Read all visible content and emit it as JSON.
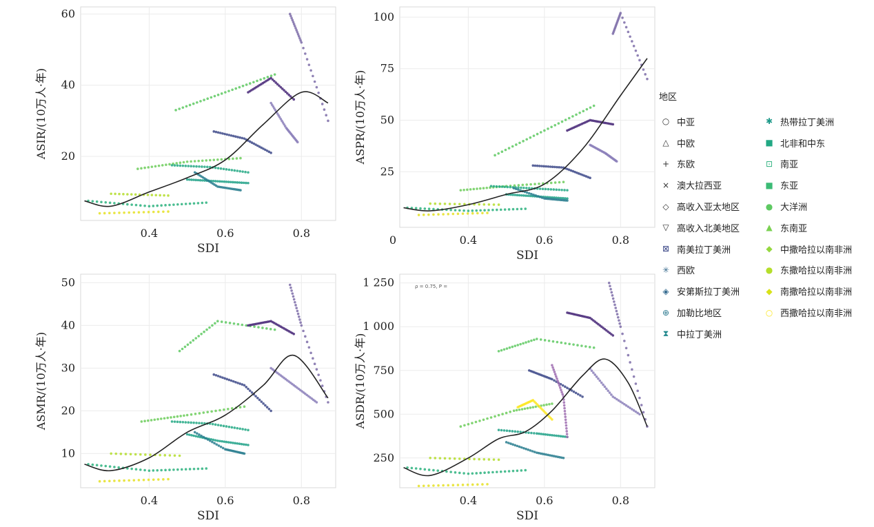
{
  "chart_data": [
    {
      "type": "scatter",
      "ylabel": "ASIR/(10万人·年)",
      "xlabel": "SDI",
      "xlim": [
        0.22,
        0.89
      ],
      "ylim": [
        2,
        62
      ],
      "xticks": [
        "0.4",
        "0.6",
        "0.8"
      ],
      "yticks": [
        "20",
        "40",
        "60"
      ],
      "annotation": "",
      "fit": {
        "x": [
          0.23,
          0.3,
          0.4,
          0.5,
          0.6,
          0.7,
          0.8,
          0.87
        ],
        "y": [
          7.5,
          6,
          10,
          14,
          19,
          29,
          38,
          35
        ]
      },
      "series": [
        {
          "color": "#e5e023",
          "x": [
            0.27,
            0.45
          ],
          "y": [
            4,
            4.5
          ]
        },
        {
          "color": "#b4dd2c",
          "x": [
            0.3,
            0.45
          ],
          "y": [
            9.5,
            9
          ]
        },
        {
          "color": "#6ccd5a",
          "x": [
            0.37,
            0.5,
            0.64
          ],
          "y": [
            16.5,
            18.5,
            19.5
          ]
        },
        {
          "color": "#5ec962",
          "x": [
            0.47,
            0.6,
            0.73
          ],
          "y": [
            33,
            38,
            43
          ]
        },
        {
          "color": "#2cb17e",
          "x": [
            0.24,
            0.4,
            0.55
          ],
          "y": [
            7.5,
            6,
            7
          ]
        },
        {
          "color": "#1fa187",
          "x": [
            0.5,
            0.58,
            0.66
          ],
          "y": [
            13.5,
            13,
            12.5
          ]
        },
        {
          "color": "#22a884",
          "x": [
            0.46,
            0.56,
            0.66
          ],
          "y": [
            17.5,
            17,
            15.5
          ]
        },
        {
          "color": "#287c8e",
          "x": [
            0.52,
            0.58,
            0.64
          ],
          "y": [
            15.5,
            11.5,
            10.5
          ]
        },
        {
          "color": "#3e4a89",
          "x": [
            0.57,
            0.65,
            0.72
          ],
          "y": [
            27,
            25,
            21
          ]
        },
        {
          "color": "#482878",
          "x": [
            0.66,
            0.72,
            0.78
          ],
          "y": [
            38,
            42,
            36
          ]
        },
        {
          "color": "#7c6ca8",
          "x": [
            0.77,
            0.8,
            0.87
          ],
          "y": [
            60,
            52,
            30
          ]
        },
        {
          "color": "#8b7fba",
          "x": [
            0.72,
            0.76,
            0.79
          ],
          "y": [
            35,
            28,
            24
          ]
        }
      ]
    },
    {
      "type": "scatter",
      "ylabel": "ASPR/(10万人·年)",
      "xlabel": "SDI",
      "xlim": [
        0.22,
        0.89
      ],
      "ylim": [
        -2,
        105
      ],
      "xticks": [
        "0.4",
        "0.6",
        "0.8"
      ],
      "yticks": [
        "25",
        "50",
        "75",
        "100"
      ],
      "extra_tick": "0",
      "annotation": "",
      "fit": {
        "x": [
          0.23,
          0.3,
          0.4,
          0.5,
          0.6,
          0.7,
          0.8,
          0.87
        ],
        "y": [
          7.5,
          6,
          9,
          14,
          19,
          36,
          62,
          80
        ]
      },
      "series": [
        {
          "color": "#e5e023",
          "x": [
            0.27,
            0.45
          ],
          "y": [
            4,
            5
          ]
        },
        {
          "color": "#b4dd2c",
          "x": [
            0.3,
            0.48
          ],
          "y": [
            9.5,
            9
          ]
        },
        {
          "color": "#6ccd5a",
          "x": [
            0.38,
            0.5,
            0.65
          ],
          "y": [
            16,
            18,
            20
          ]
        },
        {
          "color": "#5ec962",
          "x": [
            0.47,
            0.6,
            0.73
          ],
          "y": [
            33,
            45,
            57
          ]
        },
        {
          "color": "#2cb17e",
          "x": [
            0.24,
            0.4,
            0.55
          ],
          "y": [
            7.5,
            6,
            7
          ]
        },
        {
          "color": "#1fa187",
          "x": [
            0.5,
            0.58,
            0.66
          ],
          "y": [
            14,
            13,
            12
          ]
        },
        {
          "color": "#22a884",
          "x": [
            0.46,
            0.56,
            0.66
          ],
          "y": [
            18,
            17,
            16
          ]
        },
        {
          "color": "#287c8e",
          "x": [
            0.52,
            0.6,
            0.66
          ],
          "y": [
            17,
            12,
            11
          ]
        },
        {
          "color": "#3e4a89",
          "x": [
            0.57,
            0.65,
            0.72
          ],
          "y": [
            28,
            27,
            22
          ]
        },
        {
          "color": "#482878",
          "x": [
            0.66,
            0.72,
            0.78
          ],
          "y": [
            45,
            50,
            48
          ]
        },
        {
          "color": "#7c6ca8",
          "x": [
            0.78,
            0.8,
            0.87
          ],
          "y": [
            92,
            102,
            70
          ]
        },
        {
          "color": "#8b7fba",
          "x": [
            0.72,
            0.76,
            0.79
          ],
          "y": [
            38,
            34,
            30
          ]
        }
      ]
    },
    {
      "type": "scatter",
      "ylabel": "ASMR/(10万人·年)",
      "xlabel": "SDI",
      "xlim": [
        0.22,
        0.89
      ],
      "ylim": [
        2,
        52
      ],
      "xticks": [
        "0.4",
        "0.6",
        "0.8"
      ],
      "yticks": [
        "10",
        "20",
        "30",
        "40",
        "50"
      ],
      "annotation": "",
      "fit": {
        "x": [
          0.23,
          0.3,
          0.4,
          0.5,
          0.6,
          0.7,
          0.78,
          0.87
        ],
        "y": [
          7.5,
          6,
          9,
          15,
          19,
          26,
          33,
          23
        ]
      },
      "series": [
        {
          "color": "#e5e023",
          "x": [
            0.27,
            0.45
          ],
          "y": [
            3.5,
            4
          ]
        },
        {
          "color": "#b4dd2c",
          "x": [
            0.3,
            0.48
          ],
          "y": [
            10,
            9.5
          ]
        },
        {
          "color": "#6ccd5a",
          "x": [
            0.38,
            0.5,
            0.65
          ],
          "y": [
            17.5,
            19,
            21
          ]
        },
        {
          "color": "#5ec962",
          "x": [
            0.48,
            0.58,
            0.73
          ],
          "y": [
            34,
            41,
            39
          ]
        },
        {
          "color": "#2cb17e",
          "x": [
            0.24,
            0.4,
            0.55
          ],
          "y": [
            7.5,
            6,
            6.5
          ]
        },
        {
          "color": "#1fa187",
          "x": [
            0.5,
            0.58,
            0.66
          ],
          "y": [
            14.5,
            13,
            12
          ]
        },
        {
          "color": "#22a884",
          "x": [
            0.46,
            0.56,
            0.66
          ],
          "y": [
            17.5,
            17,
            15.5
          ]
        },
        {
          "color": "#287c8e",
          "x": [
            0.52,
            0.6,
            0.65
          ],
          "y": [
            15,
            11,
            10
          ]
        },
        {
          "color": "#3e4a89",
          "x": [
            0.57,
            0.65,
            0.72
          ],
          "y": [
            28.5,
            26,
            20
          ]
        },
        {
          "color": "#482878",
          "x": [
            0.66,
            0.72,
            0.78
          ],
          "y": [
            40,
            41,
            38
          ]
        },
        {
          "color": "#7c6ca8",
          "x": [
            0.77,
            0.8,
            0.87
          ],
          "y": [
            49.5,
            40,
            22
          ]
        },
        {
          "color": "#8b7fba",
          "x": [
            0.72,
            0.78,
            0.84
          ],
          "y": [
            30,
            26,
            22
          ]
        }
      ]
    },
    {
      "type": "scatter",
      "ylabel": "ASDR/(10万人·年)",
      "xlabel": "SDI",
      "xlim": [
        0.22,
        0.89
      ],
      "ylim": [
        80,
        1300
      ],
      "xticks": [
        "0.4",
        "0.6",
        "0.8"
      ],
      "yticks": [
        "250",
        "500",
        "750",
        "1 000",
        "1 250"
      ],
      "annotation": "ρ = 0.75, P =",
      "fit": {
        "x": [
          0.23,
          0.3,
          0.4,
          0.48,
          0.55,
          0.62,
          0.7,
          0.76,
          0.82,
          0.87
        ],
        "y": [
          195,
          150,
          250,
          360,
          400,
          520,
          720,
          815,
          680,
          430
        ]
      },
      "series": [
        {
          "color": "#e5e023",
          "x": [
            0.27,
            0.45
          ],
          "y": [
            90,
            100
          ]
        },
        {
          "color": "#b4dd2c",
          "x": [
            0.3,
            0.48
          ],
          "y": [
            250,
            240
          ]
        },
        {
          "color": "#6ccd5a",
          "x": [
            0.38,
            0.52,
            0.62
          ],
          "y": [
            430,
            520,
            560
          ]
        },
        {
          "color": "#fde725",
          "x": [
            0.53,
            0.57,
            0.62
          ],
          "y": [
            540,
            580,
            470
          ]
        },
        {
          "color": "#5ec962",
          "x": [
            0.48,
            0.58,
            0.73
          ],
          "y": [
            860,
            930,
            880
          ]
        },
        {
          "color": "#2cb17e",
          "x": [
            0.24,
            0.4,
            0.55
          ],
          "y": [
            195,
            160,
            180
          ]
        },
        {
          "color": "#1fa187",
          "x": [
            0.48,
            0.58,
            0.66
          ],
          "y": [
            410,
            390,
            370
          ]
        },
        {
          "color": "#287c8e",
          "x": [
            0.5,
            0.58,
            0.65
          ],
          "y": [
            340,
            280,
            250
          ]
        },
        {
          "color": "#3e4a89",
          "x": [
            0.56,
            0.62,
            0.7
          ],
          "y": [
            750,
            700,
            600
          ]
        },
        {
          "color": "#482878",
          "x": [
            0.66,
            0.72,
            0.78
          ],
          "y": [
            1080,
            1050,
            950
          ]
        },
        {
          "color": "#7c6ca8",
          "x": [
            0.77,
            0.8,
            0.87
          ],
          "y": [
            1250,
            1000,
            430
          ]
        },
        {
          "color": "#8b7fba",
          "x": [
            0.72,
            0.78,
            0.85
          ],
          "y": [
            760,
            600,
            500
          ]
        },
        {
          "color": "#9d6cb0",
          "x": [
            0.62,
            0.65,
            0.66
          ],
          "y": [
            780,
            600,
            370
          ]
        }
      ]
    }
  ],
  "legend": {
    "title": "地区",
    "items": [
      {
        "label": "中亚",
        "symbol": "○",
        "color": "#333333"
      },
      {
        "label": "中欧",
        "symbol": "△",
        "color": "#333333"
      },
      {
        "label": "东欧",
        "symbol": "+",
        "color": "#333333"
      },
      {
        "label": "澳大拉西亚",
        "symbol": "×",
        "color": "#333333"
      },
      {
        "label": "高收入亚太地区",
        "symbol": "◇",
        "color": "#333333"
      },
      {
        "label": "高收入北美地区",
        "symbol": "▽",
        "color": "#333333"
      },
      {
        "label": "南美拉丁美洲",
        "symbol": "⊠",
        "color": "#3e4a89"
      },
      {
        "label": "西欧",
        "symbol": "✳",
        "color": "#3b6d8f"
      },
      {
        "label": "安第斯拉丁美洲",
        "symbol": "◈",
        "color": "#31688e"
      },
      {
        "label": "加勒比地区",
        "symbol": "⊕",
        "color": "#2a788e"
      },
      {
        "label": "中拉丁美洲",
        "symbol": "⧗",
        "color": "#23898e"
      },
      {
        "label": "热带拉丁美洲",
        "symbol": "✱",
        "color": "#1f9a8a"
      },
      {
        "label": "北非和中东",
        "symbol": "■",
        "color": "#22a884"
      },
      {
        "label": "南亚",
        "symbol": "⊡",
        "color": "#2cb17e"
      },
      {
        "label": "东亚",
        "symbol": "■",
        "color": "#3bbb75"
      },
      {
        "label": "大洋洲",
        "symbol": "●",
        "color": "#5ec962"
      },
      {
        "label": "东南亚",
        "symbol": "▲",
        "color": "#7ad151"
      },
      {
        "label": "中撒哈拉以南非洲",
        "symbol": "◆",
        "color": "#95d840"
      },
      {
        "label": "东撒哈拉以南非洲",
        "symbol": "●",
        "color": "#b5de2b"
      },
      {
        "label": "南撒哈拉以南非洲",
        "symbol": "◆",
        "color": "#d8e219"
      },
      {
        "label": "西撒哈拉以南非洲",
        "symbol": "○",
        "color": "#fde725"
      }
    ]
  }
}
